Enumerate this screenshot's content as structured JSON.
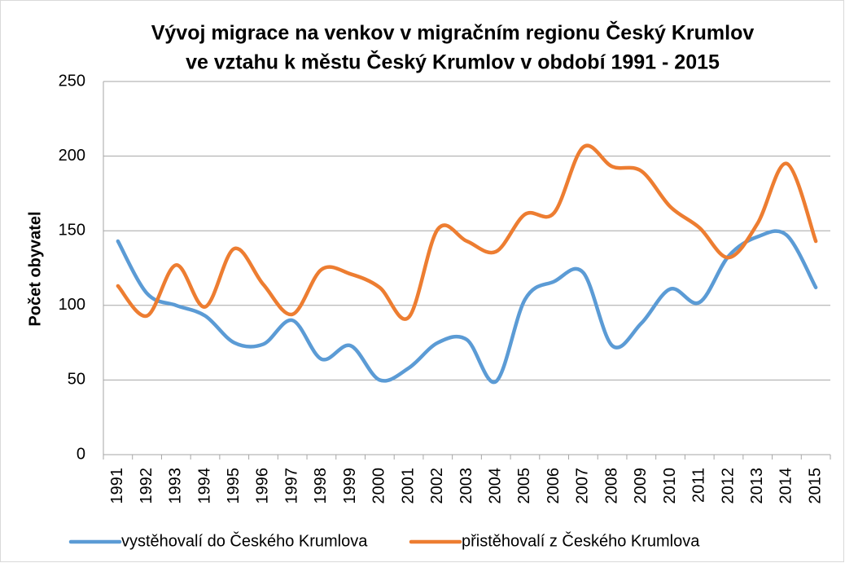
{
  "chart_data": {
    "type": "line",
    "title": [
      "Vývoj migrace na venkov v migračním regionu Český Krumlov",
      "ve vztahu k městu Český Krumlov v období 1991 - 2015"
    ],
    "y_label": "Počet obyvatel",
    "categories": [
      "1991",
      "1992",
      "1993",
      "1994",
      "1995",
      "1996",
      "1997",
      "1998",
      "1999",
      "2000",
      "2001",
      "2002",
      "2003",
      "2004",
      "2005",
      "2006",
      "2007",
      "2008",
      "2009",
      "2010",
      "2011",
      "2012",
      "2013",
      "2014",
      "2015"
    ],
    "series": [
      {
        "name": "vystěhovalí do Českého Krumlova",
        "color": "#5b9bd5",
        "values": [
          143,
          108,
          100,
          93,
          75,
          74,
          90,
          64,
          73,
          50,
          58,
          75,
          77,
          49,
          104,
          116,
          122,
          73,
          88,
          111,
          102,
          133,
          146,
          147,
          112
        ]
      },
      {
        "name": "přistěhovalí z Českého Krumlova",
        "color": "#ed7d31",
        "values": [
          113,
          93,
          127,
          99,
          138,
          114,
          94,
          124,
          121,
          112,
          92,
          151,
          143,
          136,
          161,
          162,
          206,
          193,
          190,
          166,
          152,
          132,
          155,
          195,
          143
        ]
      }
    ],
    "ylim": [
      0,
      250
    ],
    "yticks": [
      0,
      50,
      100,
      150,
      200,
      250
    ],
    "grid": true,
    "smooth": true,
    "legend": "bottom"
  }
}
